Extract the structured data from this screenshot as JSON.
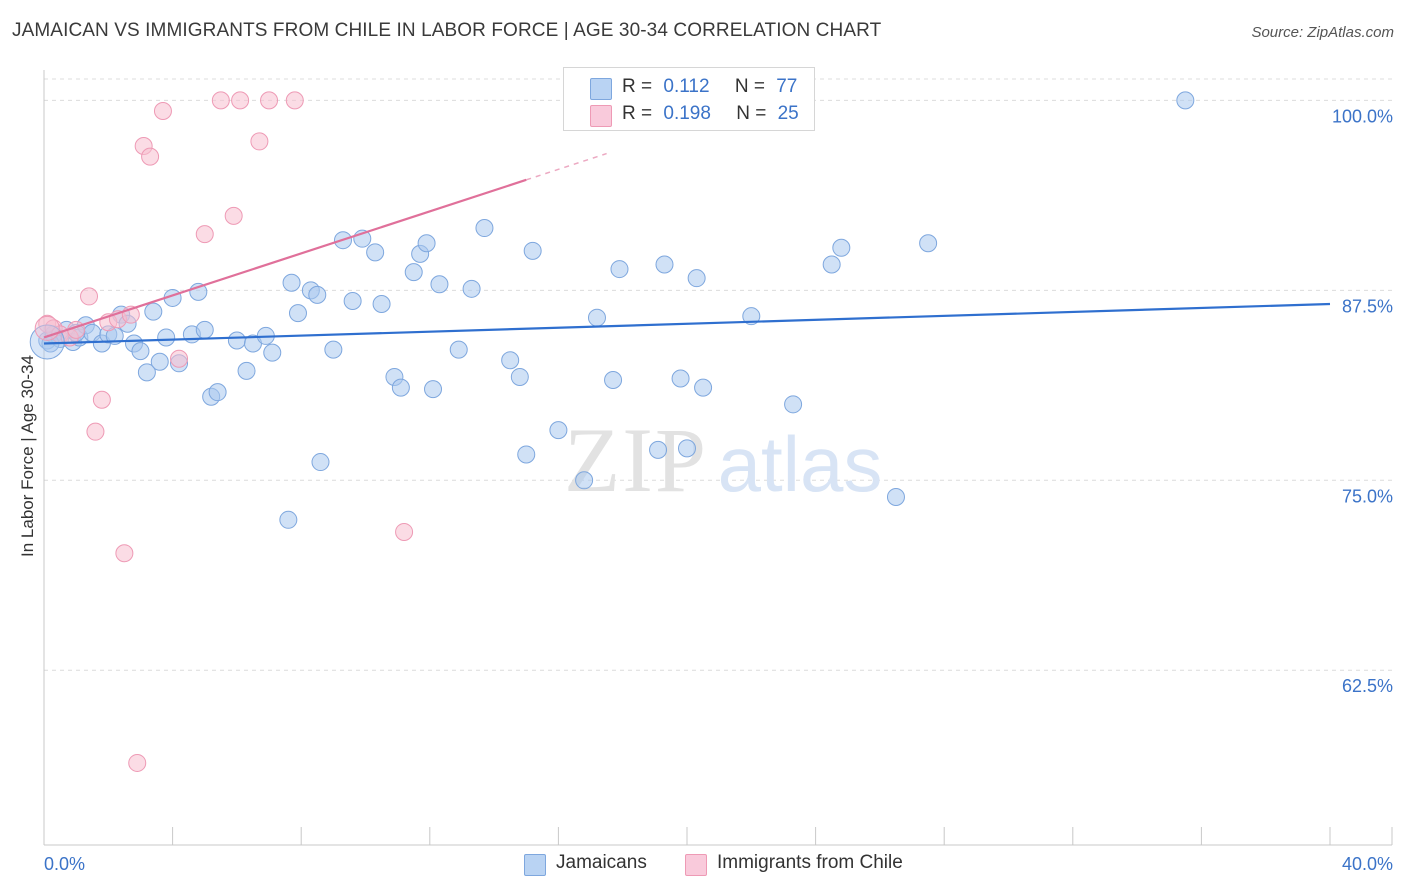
{
  "header": {
    "title": "JAMAICAN VS IMMIGRANTS FROM CHILE IN LABOR FORCE | AGE 30-34 CORRELATION CHART",
    "source": "Source: ZipAtlas.com"
  },
  "watermark": {
    "zip": "ZIP",
    "atlas": "atlas"
  },
  "legend": {
    "rows": [
      {
        "r_label": "R =",
        "r_value": "0.112",
        "n_label": "N =",
        "n_value": "77"
      },
      {
        "r_label": "R =",
        "r_value": "0.198",
        "n_label": "N =",
        "n_value": "25"
      }
    ]
  },
  "bottom_legend": [
    {
      "label": "Jamaicans"
    },
    {
      "label": "Immigrants from Chile"
    }
  ],
  "colors": {
    "blue_fill": "#a9c8ef",
    "blue_stroke": "#7ea7de",
    "blue_line": "#2f6fcf",
    "pink_fill": "#f7bfd0",
    "pink_stroke": "#ee9ab5",
    "pink_line": "#e0709a",
    "tick_label": "#3b73c8",
    "grid": "#dcdcdc"
  },
  "chart_data": {
    "type": "scatter",
    "title": "JAMAICAN VS IMMIGRANTS FROM CHILE IN LABOR FORCE | AGE 30-34 CORRELATION CHART",
    "xlabel": "",
    "ylabel": "In Labor Force | Age 30-34",
    "xlim": [
      0,
      40
    ],
    "ylim": [
      51,
      102
    ],
    "x_tick_labels": [
      {
        "value": 0,
        "label": "0.0%"
      },
      {
        "value": 40,
        "label": "40.0%"
      }
    ],
    "y_tick_labels": [
      {
        "value": 100,
        "label": "100.0%"
      },
      {
        "value": 87.5,
        "label": "87.5%"
      },
      {
        "value": 75,
        "label": "75.0%"
      },
      {
        "value": 62.5,
        "label": "62.5%"
      }
    ],
    "grid": true,
    "series": [
      {
        "name": "Jamaicans",
        "color": "blue",
        "R": 0.112,
        "N": 77,
        "trend": {
          "x0": 0,
          "y0": 84.0,
          "x1": 40,
          "y1": 86.6,
          "solid_until": 40
        },
        "points": [
          [
            0.1,
            84.2
          ],
          [
            0.3,
            84.6
          ],
          [
            0.5,
            84.3
          ],
          [
            0.7,
            84.9
          ],
          [
            0.9,
            84.1
          ],
          [
            1.1,
            84.4
          ],
          [
            1.3,
            85.2
          ],
          [
            1.5,
            84.7
          ],
          [
            1.8,
            84.0
          ],
          [
            2.0,
            84.6
          ],
          [
            2.4,
            85.9
          ],
          [
            2.6,
            85.3
          ],
          [
            2.8,
            84.0
          ],
          [
            3.0,
            83.5
          ],
          [
            3.2,
            82.1
          ],
          [
            3.4,
            86.1
          ],
          [
            3.6,
            82.8
          ],
          [
            3.8,
            84.4
          ],
          [
            4.0,
            87.0
          ],
          [
            4.2,
            82.7
          ],
          [
            4.6,
            84.6
          ],
          [
            4.8,
            87.4
          ],
          [
            5.0,
            84.9
          ],
          [
            5.2,
            80.5
          ],
          [
            5.4,
            80.8
          ],
          [
            6.0,
            84.2
          ],
          [
            6.3,
            82.2
          ],
          [
            6.5,
            84.0
          ],
          [
            6.9,
            84.5
          ],
          [
            7.1,
            83.4
          ],
          [
            7.7,
            88.0
          ],
          [
            7.9,
            86.0
          ],
          [
            8.3,
            87.5
          ],
          [
            8.5,
            87.2
          ],
          [
            9.0,
            83.6
          ],
          [
            9.3,
            90.8
          ],
          [
            9.6,
            86.8
          ],
          [
            9.9,
            90.9
          ],
          [
            10.3,
            90.0
          ],
          [
            10.5,
            86.6
          ],
          [
            10.9,
            81.8
          ],
          [
            11.1,
            81.1
          ],
          [
            11.5,
            88.7
          ],
          [
            11.7,
            89.9
          ],
          [
            11.9,
            90.6
          ],
          [
            12.1,
            81.0
          ],
          [
            12.3,
            87.9
          ],
          [
            12.9,
            83.6
          ],
          [
            13.3,
            87.6
          ],
          [
            13.7,
            91.6
          ],
          [
            14.5,
            82.9
          ],
          [
            14.8,
            81.8
          ],
          [
            15.0,
            76.7
          ],
          [
            15.2,
            90.1
          ],
          [
            16.0,
            78.3
          ],
          [
            16.8,
            75.0
          ],
          [
            17.2,
            85.7
          ],
          [
            17.7,
            81.6
          ],
          [
            17.9,
            88.9
          ],
          [
            19.1,
            77.0
          ],
          [
            19.3,
            89.2
          ],
          [
            19.8,
            81.7
          ],
          [
            20.0,
            77.1
          ],
          [
            20.3,
            88.3
          ],
          [
            20.5,
            81.1
          ],
          [
            22.0,
            85.8
          ],
          [
            23.3,
            80.0
          ],
          [
            24.5,
            89.2
          ],
          [
            24.8,
            90.3
          ],
          [
            26.5,
            73.9
          ],
          [
            27.5,
            90.6
          ],
          [
            7.6,
            72.4
          ],
          [
            8.6,
            76.2
          ],
          [
            35.5,
            100.0
          ],
          [
            1.0,
            84.7
          ],
          [
            0.2,
            84.0
          ],
          [
            2.2,
            84.5
          ]
        ]
      },
      {
        "name": "Immigrants from Chile",
        "color": "pink",
        "R": 0.198,
        "N": 25,
        "trend": {
          "x0": 0,
          "y0": 84.4,
          "x1": 17.5,
          "y1": 96.5,
          "solid_until": 15.0
        },
        "points": [
          [
            0.1,
            85.3
          ],
          [
            0.3,
            85.0
          ],
          [
            0.5,
            84.6
          ],
          [
            0.8,
            84.4
          ],
          [
            1.0,
            84.9
          ],
          [
            1.4,
            87.1
          ],
          [
            1.6,
            78.2
          ],
          [
            1.8,
            80.3
          ],
          [
            2.0,
            85.4
          ],
          [
            2.3,
            85.6
          ],
          [
            2.5,
            70.2
          ],
          [
            2.7,
            85.9
          ],
          [
            2.9,
            56.4
          ],
          [
            3.1,
            97.0
          ],
          [
            3.3,
            96.3
          ],
          [
            3.7,
            99.3
          ],
          [
            4.2,
            83.0
          ],
          [
            5.0,
            91.2
          ],
          [
            5.5,
            100.0
          ],
          [
            5.9,
            92.4
          ],
          [
            6.1,
            100.0
          ],
          [
            6.7,
            97.3
          ],
          [
            7.0,
            100.0
          ],
          [
            7.8,
            100.0
          ],
          [
            11.2,
            71.6
          ]
        ]
      }
    ]
  }
}
